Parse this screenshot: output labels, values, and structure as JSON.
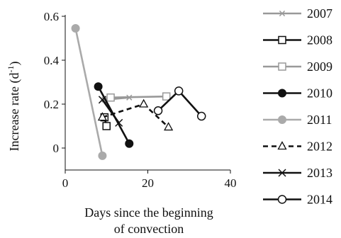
{
  "chart_data": {
    "type": "line",
    "xlabel": [
      "Days since the beginning",
      "of convection"
    ],
    "ylabel": "Increase rate (d",
    "ylabel_sup": "-1",
    "ylabel_close": ")",
    "xlim": [
      0,
      40
    ],
    "ylim": [
      -0.1,
      0.6
    ],
    "xticks": [
      0,
      20,
      40
    ],
    "yticks": [
      0,
      0.2,
      0.4,
      0.6
    ],
    "xtick_labels": [
      "0",
      "20",
      "40"
    ],
    "ytick_labels": [
      "0",
      "0.2",
      "0.4",
      "0.6"
    ],
    "grid": false,
    "legend_position": "right",
    "series": [
      {
        "name": "2007",
        "color": "#999999",
        "dash": "solid",
        "marker": "asterisk",
        "x": [
          9.5,
          15.5
        ],
        "y": [
          0.22,
          0.23
        ]
      },
      {
        "name": "2008",
        "color": "#111111",
        "dash": "solid",
        "marker": "square-open",
        "x": [
          9.5,
          10
        ],
        "y": [
          0.14,
          0.1
        ]
      },
      {
        "name": "2009",
        "color": "#999999",
        "dash": "solid",
        "marker": "square-open",
        "x": [
          11,
          24.5
        ],
        "y": [
          0.23,
          0.235
        ]
      },
      {
        "name": "2010",
        "color": "#111111",
        "dash": "solid",
        "marker": "circle-filled",
        "x": [
          8,
          15.5
        ],
        "y": [
          0.28,
          0.02
        ]
      },
      {
        "name": "2011",
        "color": "#aaaaaa",
        "dash": "solid",
        "marker": "circle-filled",
        "x": [
          2.5,
          9
        ],
        "y": [
          0.545,
          -0.035
        ]
      },
      {
        "name": "2012",
        "color": "#111111",
        "dash": "dashed",
        "marker": "triangle-open",
        "x": [
          9,
          19,
          25
        ],
        "y": [
          0.14,
          0.2,
          0.095
        ]
      },
      {
        "name": "2013",
        "color": "#111111",
        "dash": "solid",
        "marker": "x",
        "x": [
          9,
          13
        ],
        "y": [
          0.22,
          0.115
        ]
      },
      {
        "name": "2014",
        "color": "#111111",
        "dash": "solid",
        "marker": "circle-open",
        "x": [
          22.5,
          27.5,
          33
        ],
        "y": [
          0.17,
          0.26,
          0.145
        ]
      }
    ]
  }
}
